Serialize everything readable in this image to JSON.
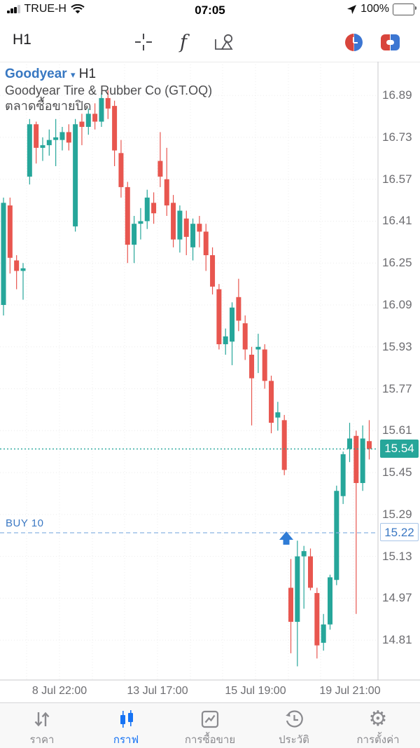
{
  "status_bar": {
    "carrier": "TRUE-H",
    "time": "07:05",
    "battery_percent": "100%"
  },
  "toolbar": {
    "timeframe": "H1"
  },
  "chart_header": {
    "symbol": "Goodyear",
    "caret": "▾",
    "timeframe": "H1",
    "company": "Goodyear Tire & Rubber Co (GT.OQ)",
    "market_status": "ตลาดซื้อขายปิด"
  },
  "chart_data": {
    "type": "candlestick",
    "symbol": "Goodyear",
    "timeframe": "H1",
    "title": "Goodyear Tire & Rubber Co (GT.OQ)",
    "ylim": [
      14.65,
      17.01
    ],
    "grid": true,
    "y_ticks": [
      "16.89",
      "16.73",
      "16.57",
      "16.41",
      "16.25",
      "16.09",
      "15.93",
      "15.77",
      "15.61",
      "15.45",
      "15.29",
      "15.13",
      "14.97",
      "14.81"
    ],
    "x_ticks": [
      "8 Jul 22:00",
      "13 Jul 17:00",
      "15 Jul 19:00",
      "19 Jul 21:00"
    ],
    "current_price": "15.54",
    "buy_order": {
      "label": "BUY 10",
      "price": "15.22"
    },
    "colors": {
      "up": "#26a69a",
      "down": "#e8564f",
      "current_price_line": "#26a69a",
      "current_price_badge_bg": "#26a69a",
      "buy_line": "#8ab4e2",
      "buy_text": "#3b78c3",
      "arrow": "#2f7cd6",
      "grid": "#ececec",
      "axis": "#c8c8cc"
    },
    "candles_format": [
      "open",
      "high",
      "low",
      "close"
    ],
    "candles": [
      [
        16.09,
        16.5,
        16.05,
        16.48
      ],
      [
        16.47,
        16.5,
        16.21,
        16.27
      ],
      [
        16.26,
        16.28,
        16.15,
        16.22
      ],
      [
        16.22,
        16.25,
        16.11,
        16.23
      ],
      [
        16.58,
        16.8,
        16.55,
        16.78
      ],
      [
        16.78,
        16.79,
        16.63,
        16.69
      ],
      [
        16.69,
        16.73,
        16.64,
        16.7
      ],
      [
        16.7,
        16.76,
        16.66,
        16.72
      ],
      [
        16.72,
        16.8,
        16.62,
        16.73
      ],
      [
        16.72,
        16.77,
        16.68,
        16.75
      ],
      [
        16.75,
        16.78,
        16.68,
        16.71
      ],
      [
        16.39,
        16.8,
        16.37,
        16.78
      ],
      [
        16.79,
        16.82,
        16.7,
        16.77
      ],
      [
        16.77,
        16.84,
        16.74,
        16.82
      ],
      [
        16.82,
        16.86,
        16.76,
        16.79
      ],
      [
        16.79,
        16.9,
        16.77,
        16.88
      ],
      [
        16.88,
        16.91,
        16.8,
        16.84
      ],
      [
        16.85,
        16.87,
        16.62,
        16.68
      ],
      [
        16.67,
        16.72,
        16.5,
        16.54
      ],
      [
        16.54,
        16.56,
        16.25,
        16.32
      ],
      [
        16.32,
        16.43,
        16.25,
        16.4
      ],
      [
        16.4,
        16.46,
        16.34,
        16.41
      ],
      [
        16.41,
        16.53,
        16.38,
        16.5
      ],
      [
        16.48,
        16.52,
        16.4,
        16.44
      ],
      [
        16.64,
        16.75,
        16.54,
        16.58
      ],
      [
        16.57,
        16.69,
        16.43,
        16.47
      ],
      [
        16.48,
        16.51,
        16.31,
        16.34
      ],
      [
        16.34,
        16.47,
        16.29,
        16.45
      ],
      [
        16.42,
        16.45,
        16.28,
        16.35
      ],
      [
        16.31,
        16.42,
        16.26,
        16.4
      ],
      [
        16.4,
        16.43,
        16.31,
        16.37
      ],
      [
        16.37,
        16.4,
        16.22,
        16.28
      ],
      [
        16.28,
        16.31,
        16.13,
        16.16
      ],
      [
        16.15,
        16.17,
        15.92,
        15.94
      ],
      [
        15.94,
        16.0,
        15.9,
        15.97
      ],
      [
        15.95,
        16.1,
        15.86,
        16.08
      ],
      [
        16.12,
        16.19,
        15.99,
        16.03
      ],
      [
        16.02,
        16.05,
        15.88,
        15.92
      ],
      [
        15.9,
        15.93,
        15.63,
        15.81
      ],
      [
        15.92,
        15.98,
        15.83,
        15.93
      ],
      [
        15.92,
        15.94,
        15.77,
        15.8
      ],
      [
        15.8,
        15.82,
        15.6,
        15.64
      ],
      [
        15.66,
        15.72,
        15.61,
        15.68
      ],
      [
        15.65,
        15.67,
        15.44,
        15.46
      ],
      [
        15.01,
        15.12,
        14.76,
        14.88
      ],
      [
        14.88,
        15.19,
        14.71,
        15.13
      ],
      [
        15.13,
        15.17,
        14.93,
        15.15
      ],
      [
        15.13,
        15.16,
        15.0,
        15.01
      ],
      [
        14.99,
        15.01,
        14.74,
        14.79
      ],
      [
        14.8,
        14.91,
        14.77,
        14.87
      ],
      [
        14.87,
        15.06,
        14.85,
        15.05
      ],
      [
        15.04,
        15.4,
        15.02,
        15.38
      ],
      [
        15.36,
        15.53,
        15.33,
        15.52
      ],
      [
        15.54,
        15.64,
        15.49,
        15.58
      ],
      [
        15.59,
        15.61,
        14.91,
        15.41
      ],
      [
        15.41,
        15.63,
        15.38,
        15.58
      ],
      [
        15.57,
        15.65,
        15.5,
        15.54
      ]
    ]
  },
  "tab_bar": {
    "items": [
      {
        "label": "ราคา"
      },
      {
        "label": "กราฟ"
      },
      {
        "label": "การซื้อขาย"
      },
      {
        "label": "ประวัติ"
      },
      {
        "label": "การตั้งค่า"
      }
    ],
    "active_index": 1
  }
}
